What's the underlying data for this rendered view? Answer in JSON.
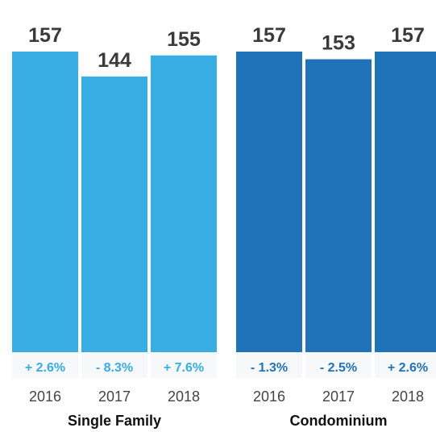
{
  "chart_data": {
    "type": "bar",
    "title": "",
    "xlabel": "",
    "ylabel": "",
    "ylim": [
      0,
      157
    ],
    "grid": false,
    "groups": [
      {
        "name": "Single Family",
        "color": "#38ade4",
        "pct_color": "#38ade4",
        "categories": [
          "2016",
          "2017",
          "2018"
        ],
        "values": [
          157,
          144,
          155
        ],
        "value_labels": [
          "157",
          "144",
          "155"
        ],
        "changes": [
          "+ 2.6%",
          "- 8.3%",
          "+ 7.6%"
        ]
      },
      {
        "name": "Condominium",
        "color": "#2073b9",
        "pct_color": "#2073b9",
        "categories": [
          "2016",
          "2017",
          "2018"
        ],
        "values": [
          157,
          153,
          157
        ],
        "value_labels": [
          "157",
          "153",
          "157"
        ],
        "changes": [
          "- 1.3%",
          "- 2.5%",
          "+ 2.6%"
        ]
      }
    ]
  }
}
